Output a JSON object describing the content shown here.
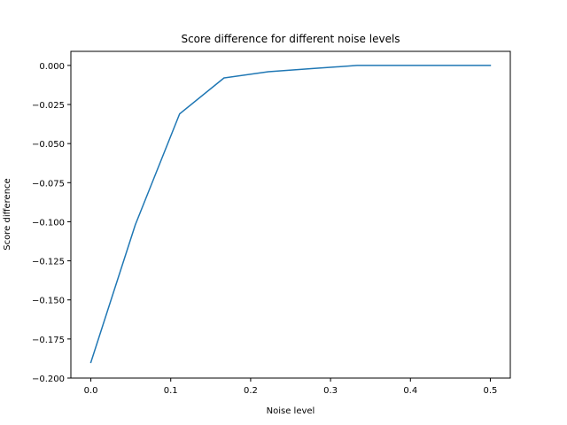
{
  "chart_data": {
    "type": "line",
    "title": "Score difference for different noise levels",
    "xlabel": "Noise level",
    "ylabel": "Score difference",
    "xlim": [
      -0.025,
      0.525
    ],
    "ylim": [
      -0.2,
      0.009
    ],
    "x_ticks": [
      0.0,
      0.1,
      0.2,
      0.3,
      0.4,
      0.5
    ],
    "x_tick_labels": [
      "0.0",
      "0.1",
      "0.2",
      "0.3",
      "0.4",
      "0.5"
    ],
    "y_ticks": [
      0.0,
      -0.025,
      -0.05,
      -0.075,
      -0.1,
      -0.125,
      -0.15,
      -0.175,
      -0.2
    ],
    "y_tick_labels": [
      "0.000",
      "−0.025",
      "−0.050",
      "−0.075",
      "−0.100",
      "−0.125",
      "−0.150",
      "−0.175",
      "−0.200"
    ],
    "grid": false,
    "legend": "none",
    "series": [
      {
        "color": "#1f77b4",
        "x": [
          0.0,
          0.0556,
          0.1111,
          0.1667,
          0.2222,
          0.2778,
          0.3333,
          0.3889,
          0.4444,
          0.5
        ],
        "y": [
          -0.19,
          -0.102,
          -0.031,
          -0.008,
          -0.004,
          -0.002,
          0.0,
          0.0,
          0.0,
          0.0
        ]
      }
    ]
  }
}
